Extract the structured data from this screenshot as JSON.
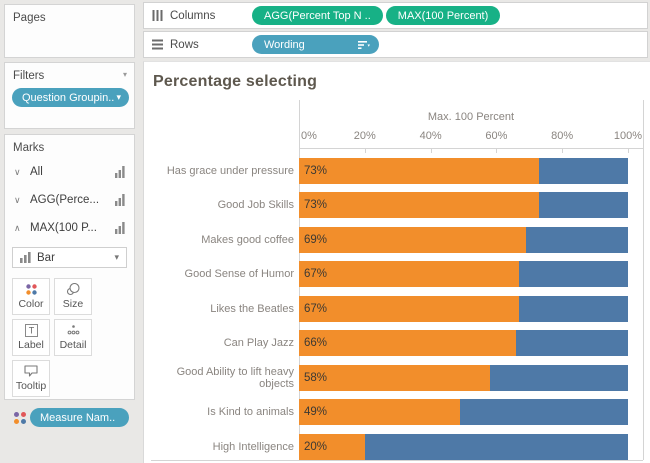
{
  "colors": {
    "bar_orange": "#f28e2b",
    "bar_blue": "#4e79a7",
    "pill_green": "#17b186",
    "pill_blue": "#4aa1bd"
  },
  "sidebar": {
    "pages": {
      "label": "Pages"
    },
    "filters": {
      "label": "Filters",
      "pill": "Question Groupin.."
    },
    "marks": {
      "label": "Marks",
      "items": [
        {
          "label": "All",
          "expanded": false
        },
        {
          "label": "AGG(Perce...",
          "expanded": false
        },
        {
          "label": "MAX(100 P...",
          "expanded": true
        }
      ],
      "mark_type": "Bar",
      "buttons": [
        "Color",
        "Size",
        "Label",
        "Detail",
        "Tooltip"
      ],
      "measure_pill": "Measure Nam.."
    }
  },
  "shelves": {
    "columns": {
      "label": "Columns",
      "pills": [
        "AGG(Percent Top N ..",
        "MAX(100 Percent)"
      ]
    },
    "rows": {
      "label": "Rows",
      "pills": [
        "Wording"
      ]
    }
  },
  "chart_data": {
    "type": "bar",
    "orientation": "horizontal",
    "stacked": true,
    "title": "Percentage selecting",
    "axis_title": "Max. 100 Percent",
    "x_ticks": [
      "0%",
      "20%",
      "40%",
      "60%",
      "80%",
      "100%"
    ],
    "xlim": [
      0,
      100
    ],
    "gridlines": false,
    "legend": "none",
    "categories": [
      "Has grace under pressure",
      "Good Job Skills",
      "Makes good coffee",
      "Good Sense of Humor",
      "Likes the Beatles",
      "Can Play Jazz",
      "Good Ability to lift heavy objects",
      "Is Kind to animals",
      "High Intelligence"
    ],
    "series": [
      {
        "name": "AGG(Percent Top N ..",
        "color": "#f28e2b",
        "values": [
          73,
          73,
          69,
          67,
          67,
          66,
          58,
          49,
          20
        ]
      },
      {
        "name": "MAX(100 Percent)",
        "color": "#4e79a7",
        "values": [
          27,
          27,
          31,
          33,
          33,
          34,
          42,
          51,
          80
        ]
      }
    ],
    "bar_labels": [
      "73%",
      "73%",
      "69%",
      "67%",
      "67%",
      "66%",
      "58%",
      "49%",
      "20%"
    ]
  }
}
